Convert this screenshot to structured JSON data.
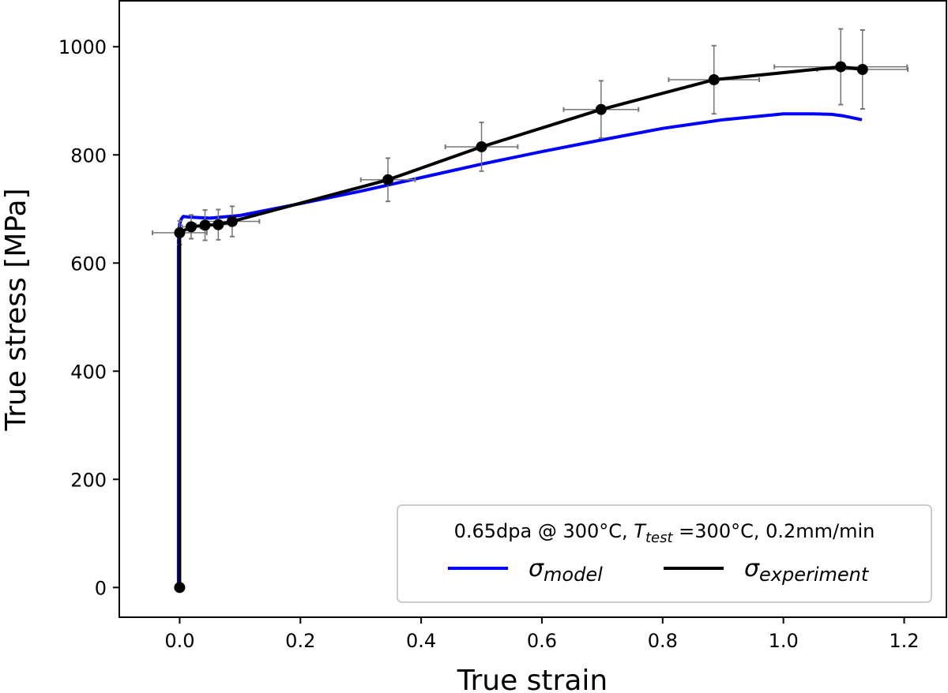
{
  "chart_data": {
    "type": "line",
    "xlabel": "True strain",
    "ylabel": "True stress [MPa]",
    "xlim": [
      -0.1,
      1.27
    ],
    "ylim": [
      -55,
      1085
    ],
    "xticks": [
      0.0,
      0.2,
      0.4,
      0.6,
      0.8,
      1.0,
      1.2
    ],
    "xtick_labels": [
      "0.0",
      "0.2",
      "0.4",
      "0.6",
      "0.8",
      "1.0",
      "1.2"
    ],
    "yticks": [
      0,
      200,
      400,
      600,
      800,
      1000
    ],
    "ytick_labels": [
      "0",
      "200",
      "400",
      "600",
      "800",
      "1000"
    ],
    "grid": false,
    "legend": {
      "placement": "lower-right",
      "title_prefix": "0.65dpa @ 300°C, ",
      "title_T": "T",
      "title_T_sub": "test",
      "title_suffix": " =300°C, 0.2mm/min"
    },
    "series": [
      {
        "name": "σ",
        "name_sub": "model",
        "color": "#0000ff",
        "style": "line",
        "x": [
          -0.002,
          -0.002,
          0.0,
          0.003,
          0.006,
          0.015,
          0.05,
          0.1,
          0.2,
          0.3,
          0.4,
          0.5,
          0.6,
          0.7,
          0.8,
          0.9,
          1.0,
          1.05,
          1.08,
          1.1,
          1.13
        ],
        "y": [
          0,
          640,
          672,
          682,
          686,
          685,
          683,
          688,
          710,
          733,
          758,
          783,
          806,
          828,
          849,
          865,
          876,
          876,
          875,
          872,
          865
        ]
      },
      {
        "name": "σ",
        "name_sub": "experiment",
        "color": "#000000",
        "style": "line+markers",
        "x": [
          0.0,
          0.0,
          0.019,
          0.042,
          0.064,
          0.087,
          0.345,
          0.5,
          0.698,
          0.885,
          1.095,
          1.131
        ],
        "y": [
          0,
          656,
          667,
          670,
          671,
          677,
          754,
          815,
          884,
          939,
          963,
          958
        ],
        "xerr": [
          0.0,
          0.045,
          0.015,
          0.015,
          0.02,
          0.045,
          0.045,
          0.06,
          0.062,
          0.075,
          0.11,
          0.075
        ],
        "yerr": [
          0,
          22,
          22,
          28,
          28,
          28,
          40,
          45,
          53,
          63,
          70,
          73
        ]
      }
    ]
  }
}
